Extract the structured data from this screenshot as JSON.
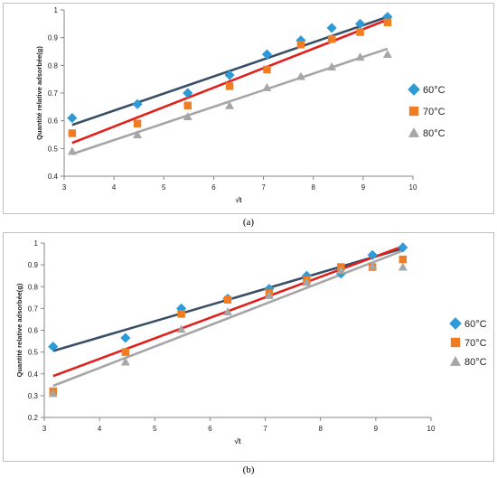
{
  "chart_data": [
    {
      "type": "scatter",
      "caption": "(a)",
      "xlabel": "√t",
      "ylabel": "Quantité relative adsorbée(g)",
      "xlim": [
        3,
        10
      ],
      "ylim": [
        0.4,
        1
      ],
      "xticks": [
        3,
        4,
        5,
        6,
        7,
        8,
        9,
        10
      ],
      "yticks": [
        0.4,
        0.5,
        0.6,
        0.7,
        0.8,
        0.9,
        1
      ],
      "legend_position": "right",
      "grid": false,
      "series": [
        {
          "name": "60°C",
          "marker": "diamond",
          "color": "#2f9bd6",
          "line_color": "#3a4f66",
          "x": [
            3.16,
            4.47,
            5.48,
            6.32,
            7.07,
            7.75,
            8.37,
            8.94,
            9.49
          ],
          "y": [
            0.61,
            0.66,
            0.7,
            0.765,
            0.84,
            0.89,
            0.935,
            0.95,
            0.975
          ],
          "trend": [
            0.585,
            0.975
          ]
        },
        {
          "name": "70°C",
          "marker": "square",
          "color": "#f07d22",
          "line_color": "#e0201a",
          "x": [
            3.16,
            4.47,
            5.48,
            6.32,
            7.07,
            7.75,
            8.37,
            8.94,
            9.49
          ],
          "y": [
            0.555,
            0.59,
            0.655,
            0.725,
            0.785,
            0.875,
            0.895,
            0.92,
            0.955
          ],
          "trend": [
            0.52,
            0.965
          ]
        },
        {
          "name": "80°C",
          "marker": "triangle",
          "color": "#a6a6a6",
          "line_color": "#a6a6a6",
          "x": [
            3.16,
            4.47,
            5.48,
            6.32,
            7.07,
            7.75,
            8.37,
            8.94,
            9.49
          ],
          "y": [
            0.49,
            0.55,
            0.615,
            0.655,
            0.72,
            0.76,
            0.795,
            0.83,
            0.84
          ],
          "trend": [
            0.48,
            0.86
          ]
        }
      ]
    },
    {
      "type": "scatter",
      "caption": "(b)",
      "xlabel": "√t",
      "ylabel": "Quantité relative adsorbée(g)",
      "xlim": [
        3,
        10
      ],
      "ylim": [
        0.2,
        1
      ],
      "xticks": [
        3,
        4,
        5,
        6,
        7,
        8,
        9,
        10
      ],
      "yticks": [
        0.2,
        0.3,
        0.4,
        0.5,
        0.6,
        0.7,
        0.8,
        0.9,
        1
      ],
      "legend_position": "right",
      "grid": false,
      "series": [
        {
          "name": "60°C",
          "marker": "diamond",
          "color": "#2f9bd6",
          "line_color": "#3a4f66",
          "x": [
            3.16,
            4.47,
            5.48,
            6.32,
            7.07,
            7.75,
            8.37,
            8.94,
            9.49
          ],
          "y": [
            0.525,
            0.565,
            0.7,
            0.745,
            0.79,
            0.85,
            0.86,
            0.945,
            0.98
          ],
          "trend": [
            0.505,
            0.975
          ]
        },
        {
          "name": "70°C",
          "marker": "square",
          "color": "#f07d22",
          "line_color": "#e0201a",
          "x": [
            3.16,
            4.47,
            5.48,
            6.32,
            7.07,
            7.75,
            8.37,
            8.94,
            9.49
          ],
          "y": [
            0.32,
            0.5,
            0.675,
            0.74,
            0.77,
            0.83,
            0.89,
            0.89,
            0.925
          ],
          "trend": [
            0.39,
            0.985
          ]
        },
        {
          "name": "80°C",
          "marker": "triangle",
          "color": "#a6a6a6",
          "line_color": "#a6a6a6",
          "x": [
            3.16,
            4.47,
            5.48,
            6.32,
            7.07,
            7.75,
            8.37,
            8.94,
            9.49
          ],
          "y": [
            0.31,
            0.455,
            0.605,
            0.685,
            0.76,
            0.82,
            0.875,
            0.895,
            0.89
          ],
          "trend": [
            0.345,
            0.965
          ]
        }
      ]
    }
  ]
}
